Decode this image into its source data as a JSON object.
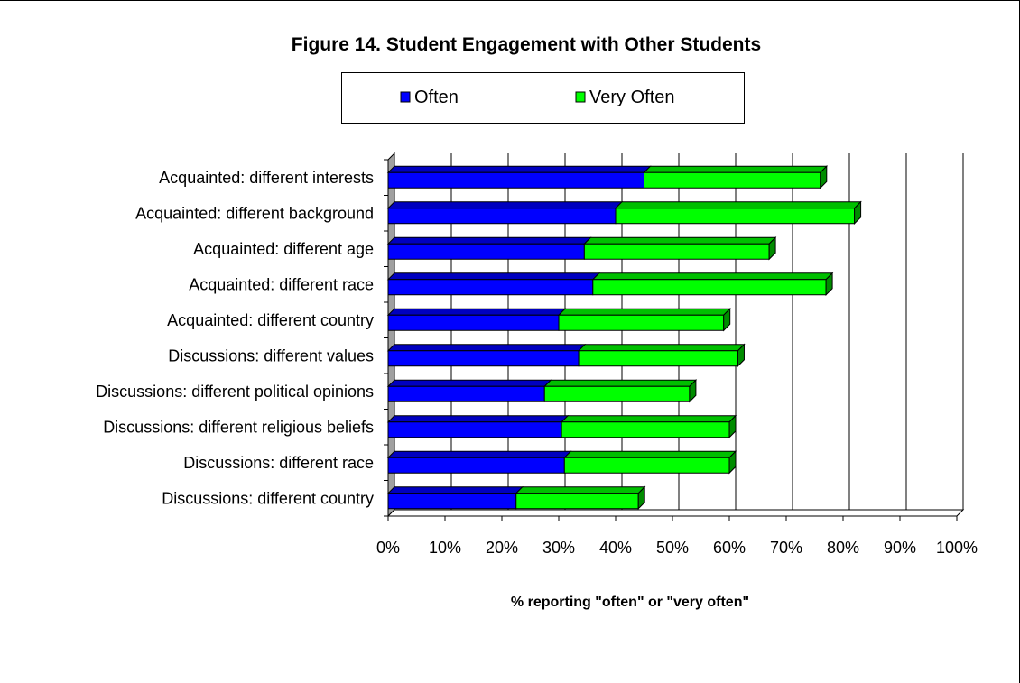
{
  "chart_data": {
    "type": "bar",
    "orientation": "horizontal",
    "stacked": true,
    "title": "Figure 14. Student Engagement with Other Students",
    "xlabel": "% reporting \"often\" or \"very often\"",
    "ylabel": "",
    "xlim": [
      0,
      100
    ],
    "x_ticks": [
      "0%",
      "10%",
      "20%",
      "30%",
      "40%",
      "50%",
      "60%",
      "70%",
      "80%",
      "90%",
      "100%"
    ],
    "grid": true,
    "legend_position": "top",
    "categories": [
      "Acquainted: different interests",
      "Acquainted: different background",
      "Acquainted: different age",
      "Acquainted: different race",
      "Acquainted: different country",
      "Discussions: different values",
      "Discussions: different political opinions",
      "Discussions: different religious beliefs",
      "Discussions: different race",
      "Discussions: different country"
    ],
    "series": [
      {
        "name": "Often",
        "color": "#0000ff",
        "values": [
          45,
          40,
          34.5,
          36,
          30,
          33.5,
          27.5,
          30.5,
          31,
          22.5
        ]
      },
      {
        "name": "Very Often",
        "color": "#00ff00",
        "values": [
          31,
          42,
          32.5,
          41,
          29,
          28,
          25.5,
          29.5,
          29,
          21.5
        ]
      }
    ]
  }
}
